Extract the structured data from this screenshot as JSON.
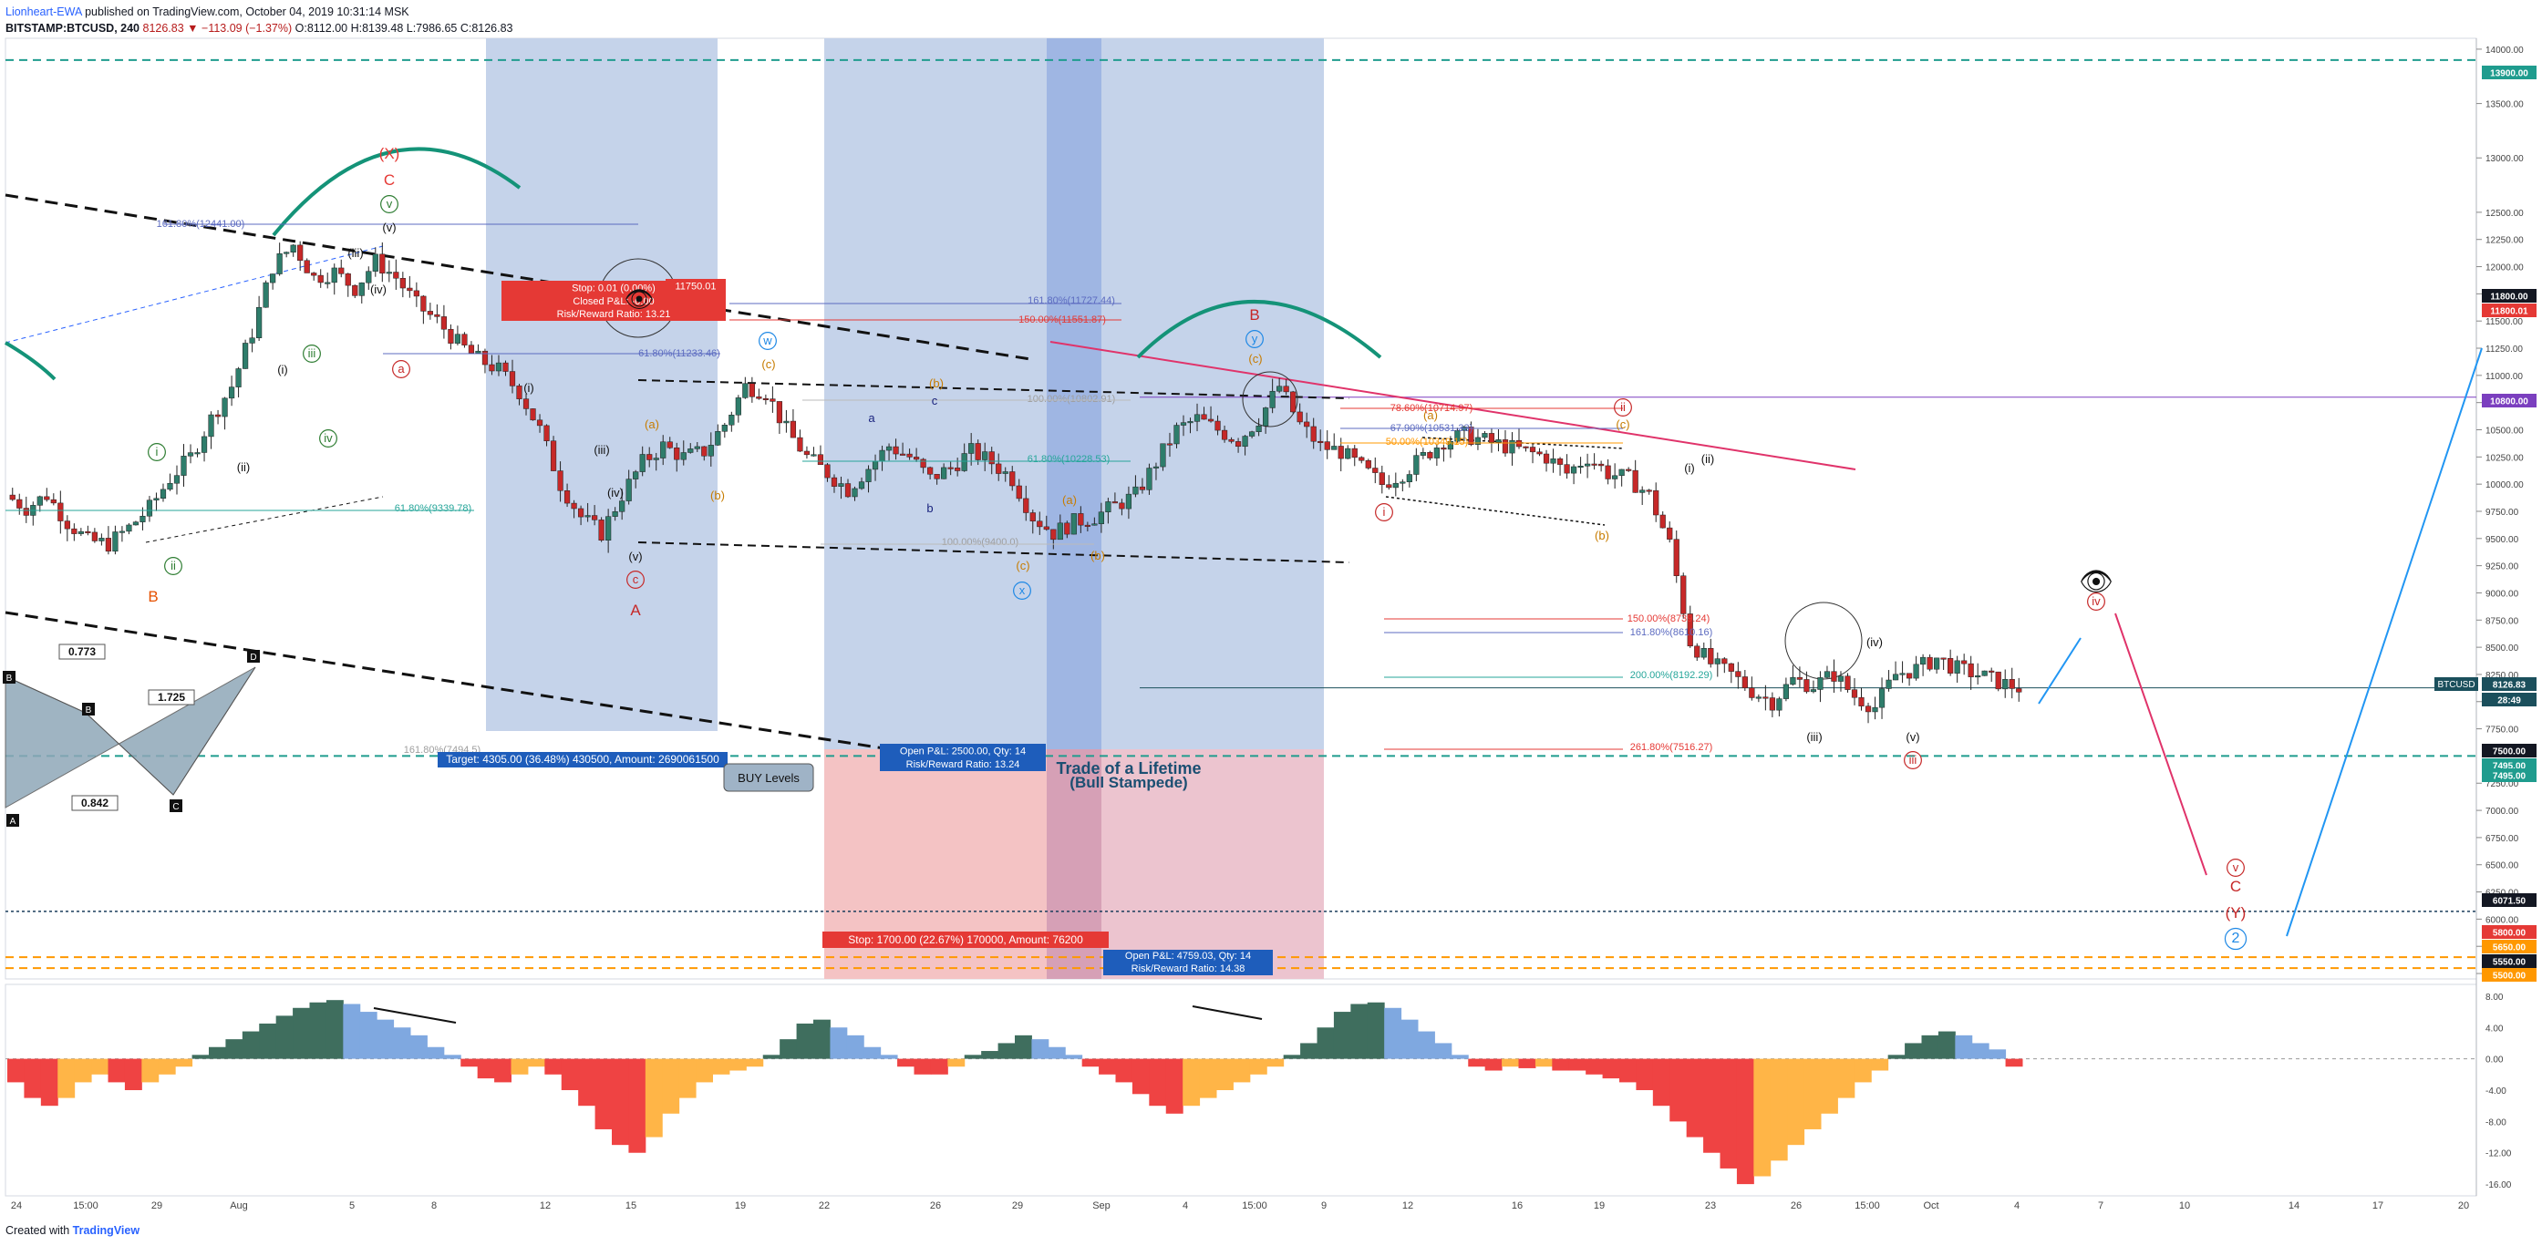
{
  "header": {
    "user": "Lionheart-EWA",
    "published": "published on TradingView.com, October 04, 2019 10:31:14 MSK",
    "symbol": "BITSTAMP:BTCUSD, 240",
    "last": "8126.83",
    "change": "▼ −113.09 (−1.37%)",
    "ohlc": "O:8112.00 H:8139.48 L:7986.65 C:8126.83"
  },
  "footer": {
    "created_with": "Created with",
    "brand": "TradingView"
  },
  "colors": {
    "bull": "#2e7d6b",
    "bear": "#c62828",
    "zone_blue": "#c5d3ea",
    "zone_dark": "#9fb6e3",
    "zone_red": "#f4c3c4",
    "teal_dash": "#1f9c8e",
    "orange_dash": "#ff9800",
    "arc": "#149378",
    "osc_green": "#3f6e5e",
    "osc_blue": "#7fa8e0",
    "osc_red": "#ef4343",
    "osc_orange": "#ffb547"
  },
  "chart_data": [
    {
      "type": "candlestick",
      "title": "",
      "y_axis_labels": [
        "14000.00",
        "13500.00",
        "13000.00",
        "12500.00",
        "12250.00",
        "12000.00",
        "11750.00",
        "11500.00",
        "11250.00",
        "11000.00",
        "10750.00",
        "10500.00",
        "10250.00",
        "10000.00",
        "9750.00",
        "9500.00",
        "9250.00",
        "9000.00",
        "8750.00",
        "8500.00",
        "8250.00",
        "8000.00",
        "7750.00",
        "7250.00",
        "7000.00",
        "6750.00",
        "6500.00",
        "6250.00",
        "6000.00",
        "5750.00",
        "5500.00"
      ],
      "ylim": [
        5450,
        14100
      ],
      "x_tick_labels": [
        "24",
        "15:00",
        "29",
        "Aug",
        "5",
        "8",
        "12",
        "15",
        "19",
        "22",
        "26",
        "29",
        "Sep",
        "4",
        "15:00",
        "9",
        "12",
        "16",
        "19",
        "23",
        "26",
        "15:00",
        "Oct",
        "4",
        "7",
        "10",
        "14",
        "17",
        "20"
      ],
      "price_badges": [
        {
          "value": "13900.00",
          "color": "#1f9c8e"
        },
        {
          "value": "11800.00",
          "color": "#131722"
        },
        {
          "value": "11800.01",
          "color": "#e53935"
        },
        {
          "value": "10800.00",
          "color": "#7b3fbf"
        },
        {
          "value": "8126.83",
          "color": "#1b4f5c"
        },
        {
          "value": "28:49",
          "color": "#1b4f5c"
        },
        {
          "value": "7500.00",
          "color": "#131722"
        },
        {
          "value": "7495.00",
          "color": "#1f9c8e"
        },
        {
          "value": "7495.00",
          "color": "#1f9c8e"
        },
        {
          "value": "6071.50",
          "color": "#131722"
        },
        {
          "value": "5800.00",
          "color": "#e53935"
        },
        {
          "value": "5650.00",
          "color": "#ff9800"
        },
        {
          "value": "5550.00",
          "color": "#131722"
        },
        {
          "value": "5500.00",
          "color": "#ff9800"
        }
      ],
      "symbol_badge": "BTCUSD",
      "horizontal_levels": [
        13900,
        10800,
        8126.83,
        7500,
        6071.5,
        5650,
        5550
      ],
      "ohlc_path": [
        9900,
        9780,
        9900,
        9650,
        9480,
        9450,
        9600,
        9780,
        10050,
        10250,
        10600,
        10900,
        11400,
        12000,
        12200,
        11900,
        11950,
        11800,
        12050,
        11900,
        11650,
        11500,
        11300,
        11150,
        11050,
        10850,
        10500,
        10000,
        9700,
        9550,
        9900,
        10200,
        10350,
        10250,
        10300,
        10550,
        10900,
        10850,
        10500,
        10250,
        10100,
        9950,
        10150,
        10350,
        10250,
        10050,
        10150,
        10300,
        10200,
        10050,
        9700,
        9550,
        9650,
        9700,
        9800,
        9900,
        10200,
        10500,
        10600,
        10500,
        10400,
        10600,
        10900,
        10550,
        10350,
        10300,
        10150,
        10000,
        10100,
        10250,
        10400,
        10450,
        10400,
        10350,
        10300,
        10250,
        10100,
        10250,
        10100,
        10050,
        9900,
        9450,
        8550,
        8350,
        8250,
        8100,
        8000,
        8200,
        8150,
        8250,
        8050,
        7950,
        8250,
        8300,
        8400,
        8300,
        8250,
        8180,
        8126
      ],
      "fib_labels": [
        "161.80%(12441.00)",
        "161.80%(11727.44)",
        "150.00%(11551.87)",
        "61.80%(11233.46)",
        "100.00%(10802.91)",
        "61.80%(10228.53)",
        "100.00%(9400.0)",
        "61.80%(9339.78)",
        "78.60%(10714.97)",
        "67.90%(10531.33)",
        "50.00%(10349.15)",
        "150.00%(8739.24)",
        "161.80%(8610.16)",
        "200.00%(8192.29)",
        "261.80%(7516.27)",
        "161.80%(7494.5)"
      ],
      "wave_labels": [
        "(X)",
        "C",
        "v",
        "(v)",
        "(iii)",
        "(iv)",
        "iii",
        "iv",
        "(i)",
        "(ii)",
        "i",
        "ii",
        "B",
        "a",
        "(i)",
        "(iii)",
        "(iv)",
        "(v)",
        "c",
        "A",
        "w",
        "(c)",
        "(a)",
        "(b)",
        "(b)",
        "a",
        "b",
        "c",
        "x",
        "(a)",
        "(c)",
        "(b)",
        "y",
        "B",
        "(c)",
        "(a)",
        "i",
        "ii",
        "(c)",
        "(b)",
        "(ii)",
        "(i)",
        "(iv)",
        "(iii)",
        "(v)",
        "iii",
        "iv",
        "v",
        "C",
        "(Y)",
        "2"
      ],
      "annotations": {
        "stop_top": "Stop: 0.01 (0.00%)",
        "stop_top_pnl": "Closed P&L: -0.00",
        "stop_top_rr": "Risk/Reward Ratio: 13.21",
        "target_top": "11750.01",
        "target": "Target: 4305.00 (36.48%) 430500, Amount: 2690061500",
        "buy_levels": "BUY Levels",
        "open_pnl_small": "Open P&L: 2500.00, Qty: 14",
        "rr_small": "Risk/Reward Ratio: 13.24",
        "trade": "Trade of a Lifetime",
        "trade2": "(Bull Stampede)",
        "stop_bottom": "Stop: 1700.00 (22.67%) 170000, Amount: 76200",
        "open_pnl": "Open P&L: 4759.03, Qty: 14",
        "rr": "Risk/Reward Ratio: 14.38",
        "harmonic": [
          "0.773",
          "1.725",
          "0.842"
        ],
        "harmonic_pts": [
          "B",
          "B",
          "D",
          "C",
          "A"
        ]
      }
    },
    {
      "type": "bar",
      "title": "",
      "y_axis_labels": [
        "8.00",
        "4.00",
        "0.00",
        "-4.00",
        "-8.00",
        "-12.00",
        "-16.00"
      ],
      "ylim": [
        -17.5,
        9.5
      ],
      "values": [
        -3,
        -5,
        -6,
        -5,
        -3,
        -2,
        -3,
        -4,
        -3,
        -2,
        -1,
        0.5,
        1.5,
        2.5,
        3.5,
        4.5,
        5.5,
        6.5,
        7.2,
        7.5,
        7,
        6,
        5,
        4,
        3,
        1.5,
        0.5,
        -1,
        -2.5,
        -3,
        -2,
        -1,
        -2,
        -4,
        -6,
        -9,
        -11,
        -12,
        -10,
        -7,
        -5,
        -3,
        -2,
        -1.5,
        -1,
        0.5,
        2.5,
        4.5,
        5,
        4,
        3,
        1.5,
        0.5,
        -1,
        -2,
        -2,
        -1,
        0.5,
        1,
        2,
        3,
        2.5,
        1.5,
        0.5,
        -1,
        -2,
        -3,
        -4.5,
        -6,
        -7,
        -6,
        -5,
        -4,
        -3,
        -2,
        -1,
        0.5,
        2,
        4,
        6,
        7,
        7.2,
        6.5,
        5,
        3.5,
        2,
        0.5,
        -1,
        -1.5,
        -1,
        -1.2,
        -1,
        -1.5,
        -1.5,
        -2,
        -2.5,
        -3,
        -4,
        -6,
        -8,
        -10,
        -12,
        -14,
        -16,
        -15,
        -13,
        -11,
        -9,
        -7,
        -5,
        -3,
        -1.5,
        0.5,
        2,
        3,
        3.5,
        3,
        2,
        1.2,
        -1
      ]
    }
  ]
}
